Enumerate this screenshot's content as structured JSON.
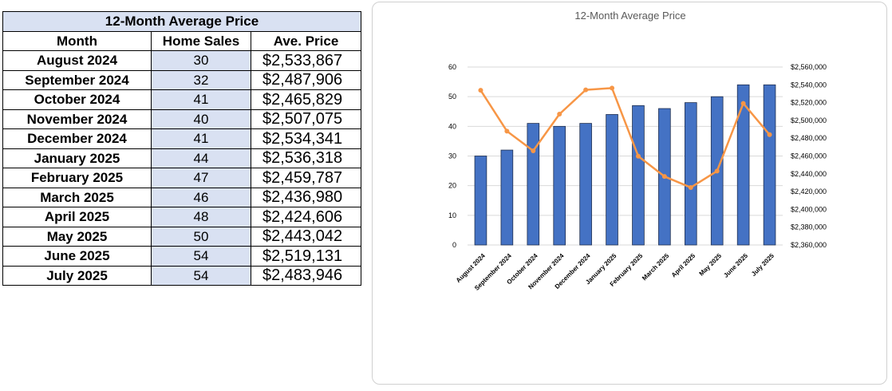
{
  "table": {
    "title": "12-Month Average Price",
    "headers": {
      "month": "Month",
      "sales": "Home Sales",
      "price": "Ave. Price"
    },
    "rows": [
      {
        "month": "August 2024",
        "sales": "30",
        "price": "$2,533,867"
      },
      {
        "month": "September 2024",
        "sales": "32",
        "price": "$2,487,906"
      },
      {
        "month": "October 2024",
        "sales": "41",
        "price": "$2,465,829"
      },
      {
        "month": "November 2024",
        "sales": "40",
        "price": "$2,507,075"
      },
      {
        "month": "December 2024",
        "sales": "41",
        "price": "$2,534,341"
      },
      {
        "month": "January 2025",
        "sales": "44",
        "price": "$2,536,318"
      },
      {
        "month": "February 2025",
        "sales": "47",
        "price": "$2,459,787"
      },
      {
        "month": "March 2025",
        "sales": "46",
        "price": "$2,436,980"
      },
      {
        "month": "April 2025",
        "sales": "48",
        "price": "$2,424,606"
      },
      {
        "month": "May 2025",
        "sales": "50",
        "price": "$2,443,042"
      },
      {
        "month": "June 2025",
        "sales": "54",
        "price": "$2,519,131"
      },
      {
        "month": "July 2025",
        "sales": "54",
        "price": "$2,483,946"
      }
    ]
  },
  "chart_data": {
    "type": "bar",
    "title": "12-Month Average Price",
    "categories": [
      "August 2024",
      "September 2024",
      "October 2024",
      "November 2024",
      "December 2024",
      "January 2025",
      "February 2025",
      "March 2025",
      "April 2025",
      "May 2025",
      "June 2025",
      "July 2025"
    ],
    "series": [
      {
        "type": "bar",
        "axis": "left",
        "values": [
          30,
          32,
          41,
          40,
          41,
          44,
          47,
          46,
          48,
          50,
          54,
          54
        ],
        "color": "#4472c4"
      },
      {
        "type": "line",
        "axis": "right",
        "values": [
          2533867,
          2487906,
          2465829,
          2507075,
          2534341,
          2536318,
          2459787,
          2436980,
          2424606,
          2443042,
          2519131,
          2483946
        ],
        "color": "#f79646"
      }
    ],
    "ylim_left": [
      0,
      60
    ],
    "yticks_left": [
      "0",
      "10",
      "20",
      "30",
      "40",
      "50",
      "60"
    ],
    "ylim_right": [
      2360000,
      2560000
    ],
    "yticks_right": [
      "$2,360,000",
      "$2,380,000",
      "$2,400,000",
      "$2,420,000",
      "$2,440,000",
      "$2,460,000",
      "$2,480,000",
      "$2,500,000",
      "$2,520,000",
      "$2,540,000",
      "$2,560,000"
    ],
    "grid": true,
    "legend": "none"
  }
}
